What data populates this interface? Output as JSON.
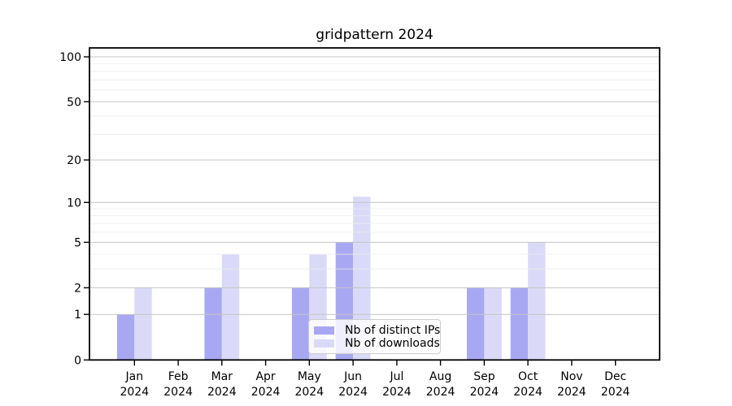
{
  "chart_data": {
    "type": "bar",
    "title": "gridpattern 2024",
    "categories": [
      "Jan 2024",
      "Feb 2024",
      "Mar 2024",
      "Apr 2024",
      "May 2024",
      "Jun 2024",
      "Jul 2024",
      "Aug 2024",
      "Sep 2024",
      "Oct 2024",
      "Nov 2024",
      "Dec 2024"
    ],
    "series": [
      {
        "name": "Nb of distinct IPs",
        "color": "#a8a8f2",
        "values": [
          1,
          0,
          2,
          0,
          2,
          5,
          0,
          0,
          2,
          2,
          0,
          0
        ]
      },
      {
        "name": "Nb of downloads",
        "color": "#dadaf8",
        "values": [
          2,
          0,
          4,
          0,
          4,
          11,
          0,
          0,
          2,
          5,
          0,
          0
        ]
      }
    ],
    "xlabel": "",
    "ylabel": "",
    "y_axis": {
      "scale": "log1p",
      "major_ticks": [
        100,
        50,
        20,
        10,
        5,
        2,
        1,
        0
      ],
      "minor_ticks": [
        3,
        4,
        6,
        7,
        8,
        9,
        30,
        40,
        60,
        70,
        80,
        90
      ],
      "ylim": [
        0,
        115
      ]
    },
    "grid": true,
    "legend_position": "lower center",
    "colors": {
      "major_grid": "#c4c4c4",
      "minor_grid": "#ebebeb",
      "spine": "#000000",
      "text": "#000000"
    }
  }
}
